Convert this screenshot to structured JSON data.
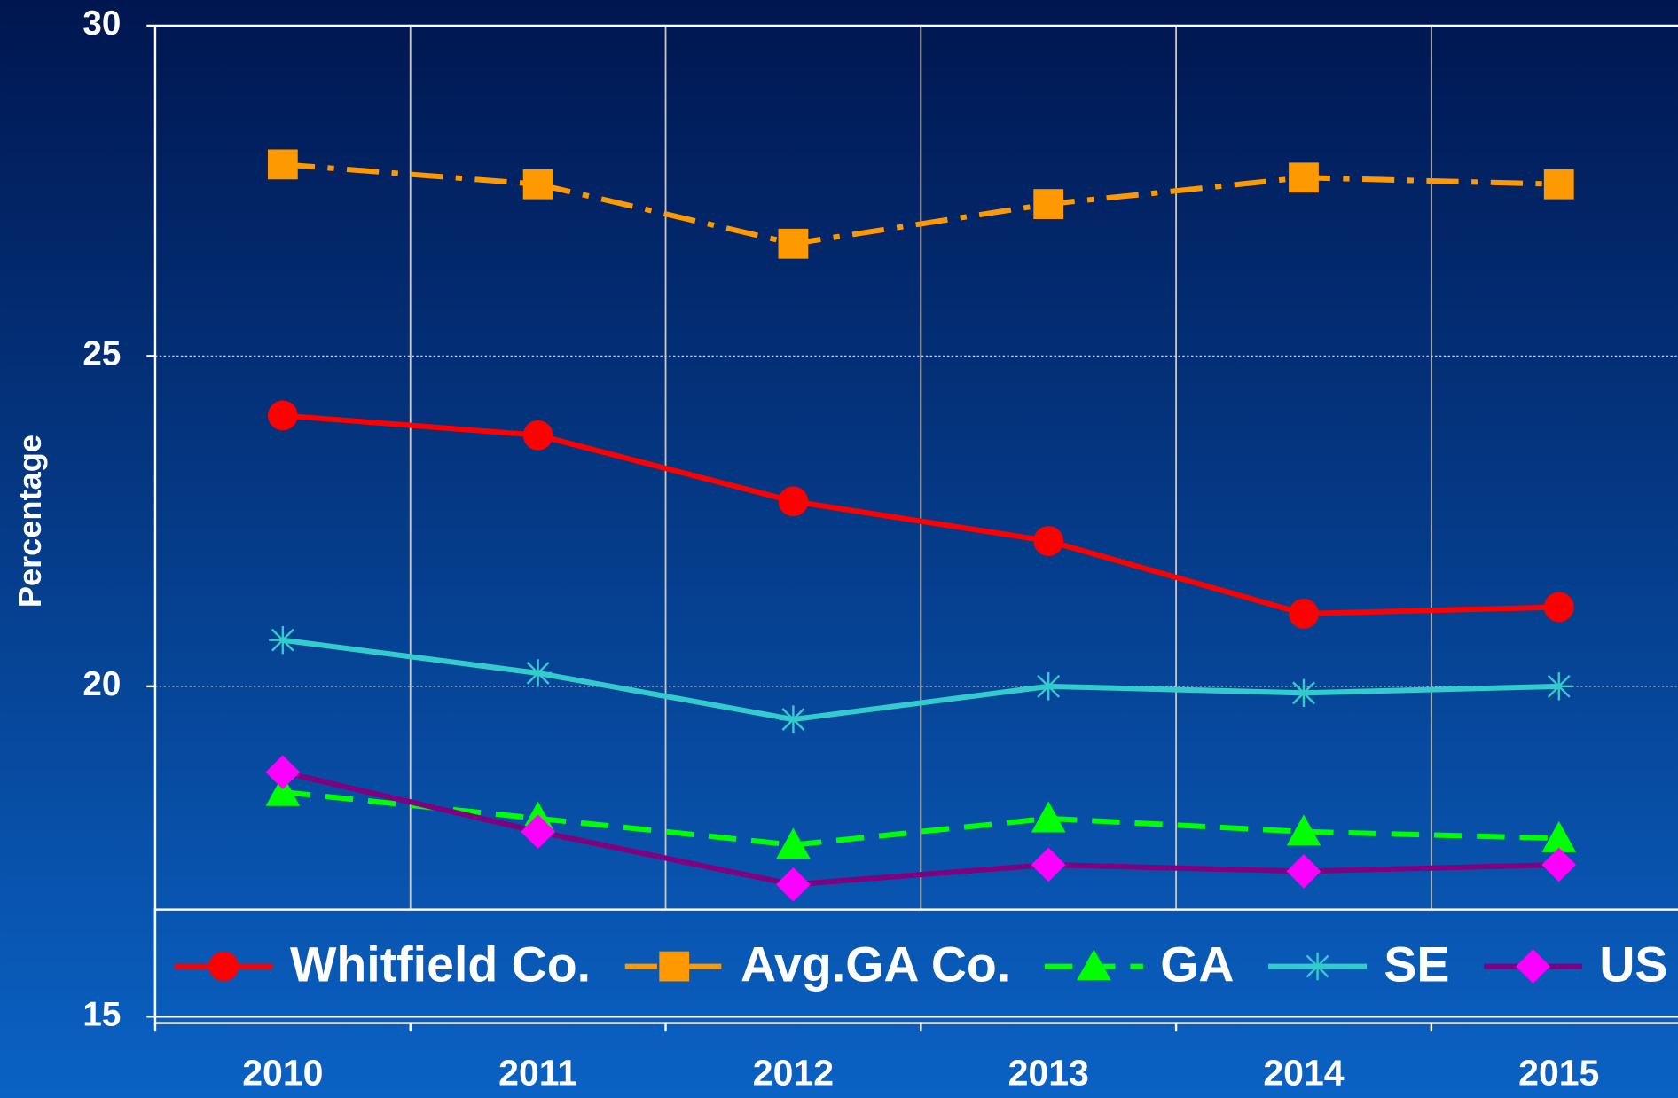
{
  "chart_data": {
    "type": "line",
    "y_label": "Percentage",
    "categories": [
      "2010",
      "2011",
      "2012",
      "2013",
      "2014",
      "2015"
    ],
    "series": [
      {
        "name": "Whitfield Co.",
        "color": "#ff0000",
        "marker": "circle",
        "dash": "solid",
        "values": [
          24.1,
          23.8,
          22.8,
          22.2,
          21.1,
          21.2
        ]
      },
      {
        "name": "Avg.GA Co.",
        "color": "#ff9900",
        "marker": "square",
        "dash": "dash-dot",
        "values": [
          27.9,
          27.6,
          26.7,
          27.3,
          27.7,
          27.6
        ]
      },
      {
        "name": "GA",
        "color": "#00ff00",
        "marker": "triangle",
        "dash": "dash",
        "values": [
          18.4,
          18.0,
          17.6,
          18.0,
          17.8,
          17.7
        ]
      },
      {
        "name": "SE",
        "color": "#33cccc",
        "marker": "asterisk",
        "dash": "solid",
        "values": [
          20.7,
          20.2,
          19.5,
          20.0,
          19.9,
          20.0
        ]
      },
      {
        "name": "US",
        "color": "#ff00ff",
        "marker": "diamond",
        "dash": "solid",
        "line_color": "#800080",
        "values": [
          18.7,
          17.8,
          17.0,
          17.3,
          17.2,
          17.3
        ]
      }
    ],
    "ylim": [
      15,
      30
    ],
    "yticks": [
      15,
      20,
      25,
      30
    ],
    "grid": true,
    "legend": "bottom"
  }
}
